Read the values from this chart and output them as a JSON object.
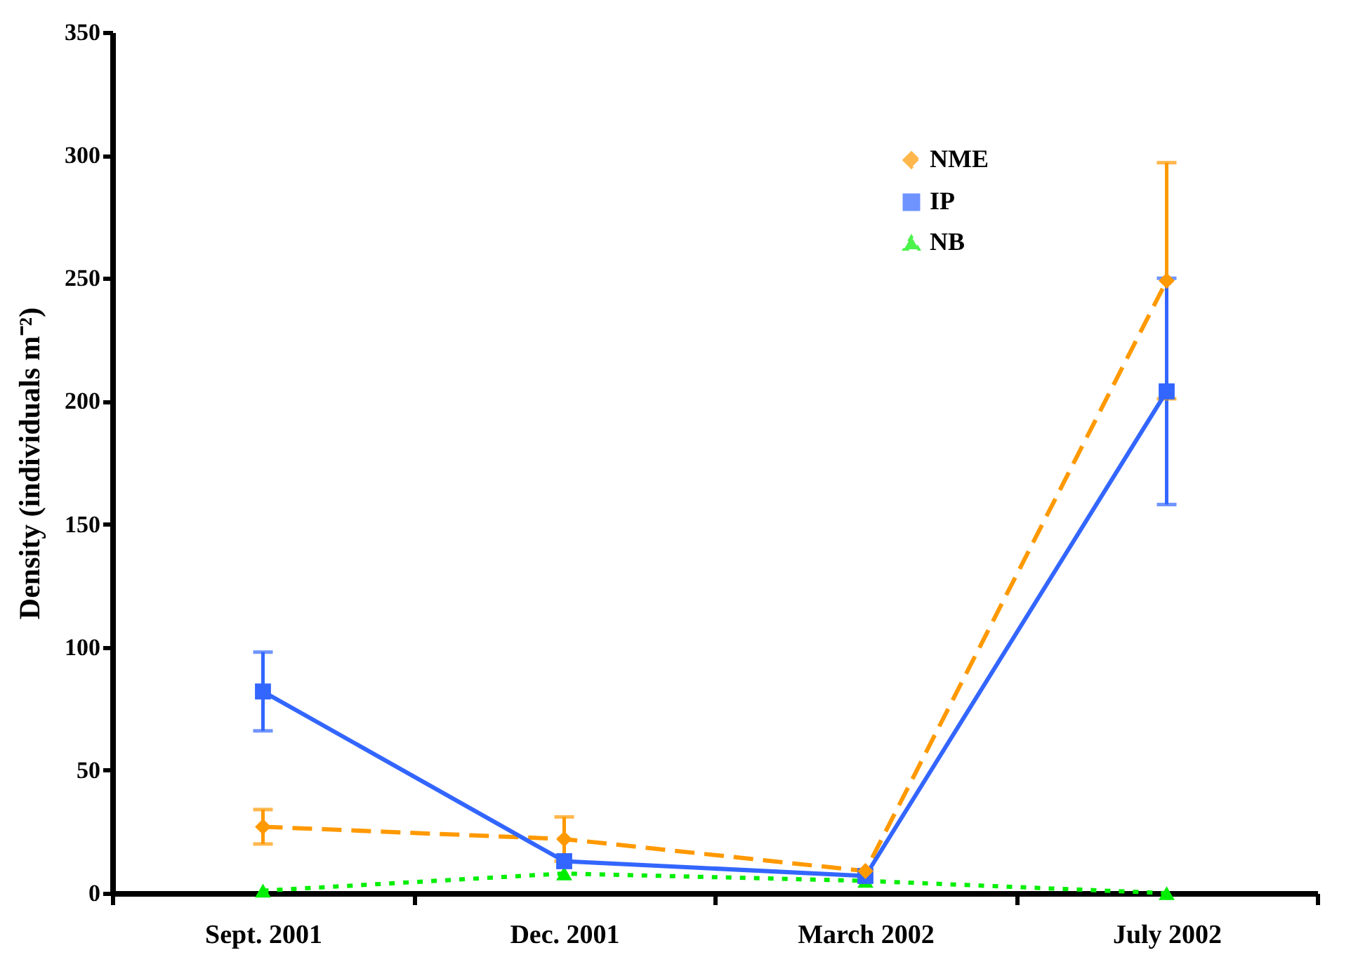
{
  "chart_data": {
    "type": "line",
    "ylabel": "Density (individuals m⁻²)",
    "categories": [
      "Sept. 2001",
      "Dec. 2001",
      "March 2002",
      "July 2002"
    ],
    "series": [
      {
        "name": "NME",
        "color": "#ff9900",
        "values": [
          27,
          22,
          9,
          249
        ],
        "errors": [
          7,
          9,
          null,
          48
        ],
        "marker": "diamond",
        "line_style": "dashed"
      },
      {
        "name": "IP",
        "color": "#3366ff",
        "values": [
          82,
          13,
          7,
          204
        ],
        "errors": [
          16,
          null,
          null,
          46
        ],
        "marker": "square",
        "line_style": "solid"
      },
      {
        "name": "NB",
        "color": "#00ee00",
        "values": [
          1,
          8,
          5,
          0
        ],
        "errors": [
          null,
          null,
          null,
          null
        ],
        "marker": "triangle",
        "line_style": "dotted"
      }
    ],
    "ylim": [
      0,
      350
    ],
    "yticks": [
      0,
      50,
      100,
      150,
      200,
      250,
      300,
      350
    ],
    "grid": false,
    "legend": "top right"
  }
}
